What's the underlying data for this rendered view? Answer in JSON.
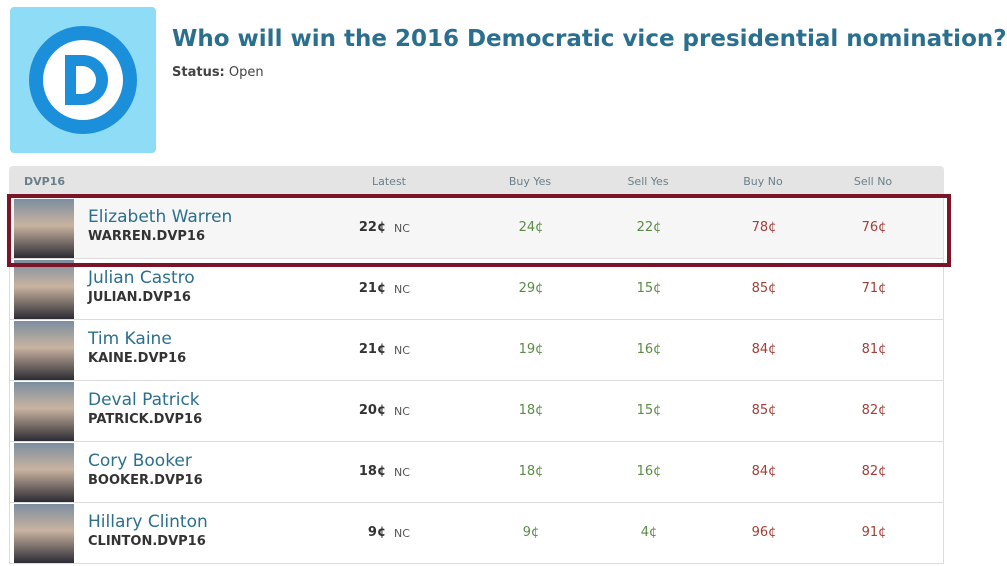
{
  "header": {
    "title": "Who will win the 2016 Democratic vice presidential nomination?",
    "status_label": "Status:",
    "status_value": "Open"
  },
  "table": {
    "columns": [
      "DVP16",
      "Latest",
      "Buy Yes",
      "Sell Yes",
      "Buy No",
      "Sell No"
    ],
    "rows": [
      {
        "name": "Elizabeth Warren",
        "ticker": "WARREN.DVP16",
        "latest": "22¢",
        "change": "NC",
        "buy_yes": "24¢",
        "sell_yes": "22¢",
        "buy_no": "78¢",
        "sell_no": "76¢"
      },
      {
        "name": "Julian Castro",
        "ticker": "JULIAN.DVP16",
        "latest": "21¢",
        "change": "NC",
        "buy_yes": "29¢",
        "sell_yes": "15¢",
        "buy_no": "85¢",
        "sell_no": "71¢"
      },
      {
        "name": "Tim Kaine",
        "ticker": "KAINE.DVP16",
        "latest": "21¢",
        "change": "NC",
        "buy_yes": "19¢",
        "sell_yes": "16¢",
        "buy_no": "84¢",
        "sell_no": "81¢"
      },
      {
        "name": "Deval Patrick",
        "ticker": "PATRICK.DVP16",
        "latest": "20¢",
        "change": "NC",
        "buy_yes": "18¢",
        "sell_yes": "15¢",
        "buy_no": "85¢",
        "sell_no": "82¢"
      },
      {
        "name": "Cory Booker",
        "ticker": "BOOKER.DVP16",
        "latest": "18¢",
        "change": "NC",
        "buy_yes": "18¢",
        "sell_yes": "16¢",
        "buy_no": "84¢",
        "sell_no": "82¢"
      },
      {
        "name": "Hillary Clinton",
        "ticker": "CLINTON.DVP16",
        "latest": "9¢",
        "change": "NC",
        "buy_yes": "9¢",
        "sell_yes": "4¢",
        "buy_no": "96¢",
        "sell_no": "91¢"
      }
    ]
  }
}
